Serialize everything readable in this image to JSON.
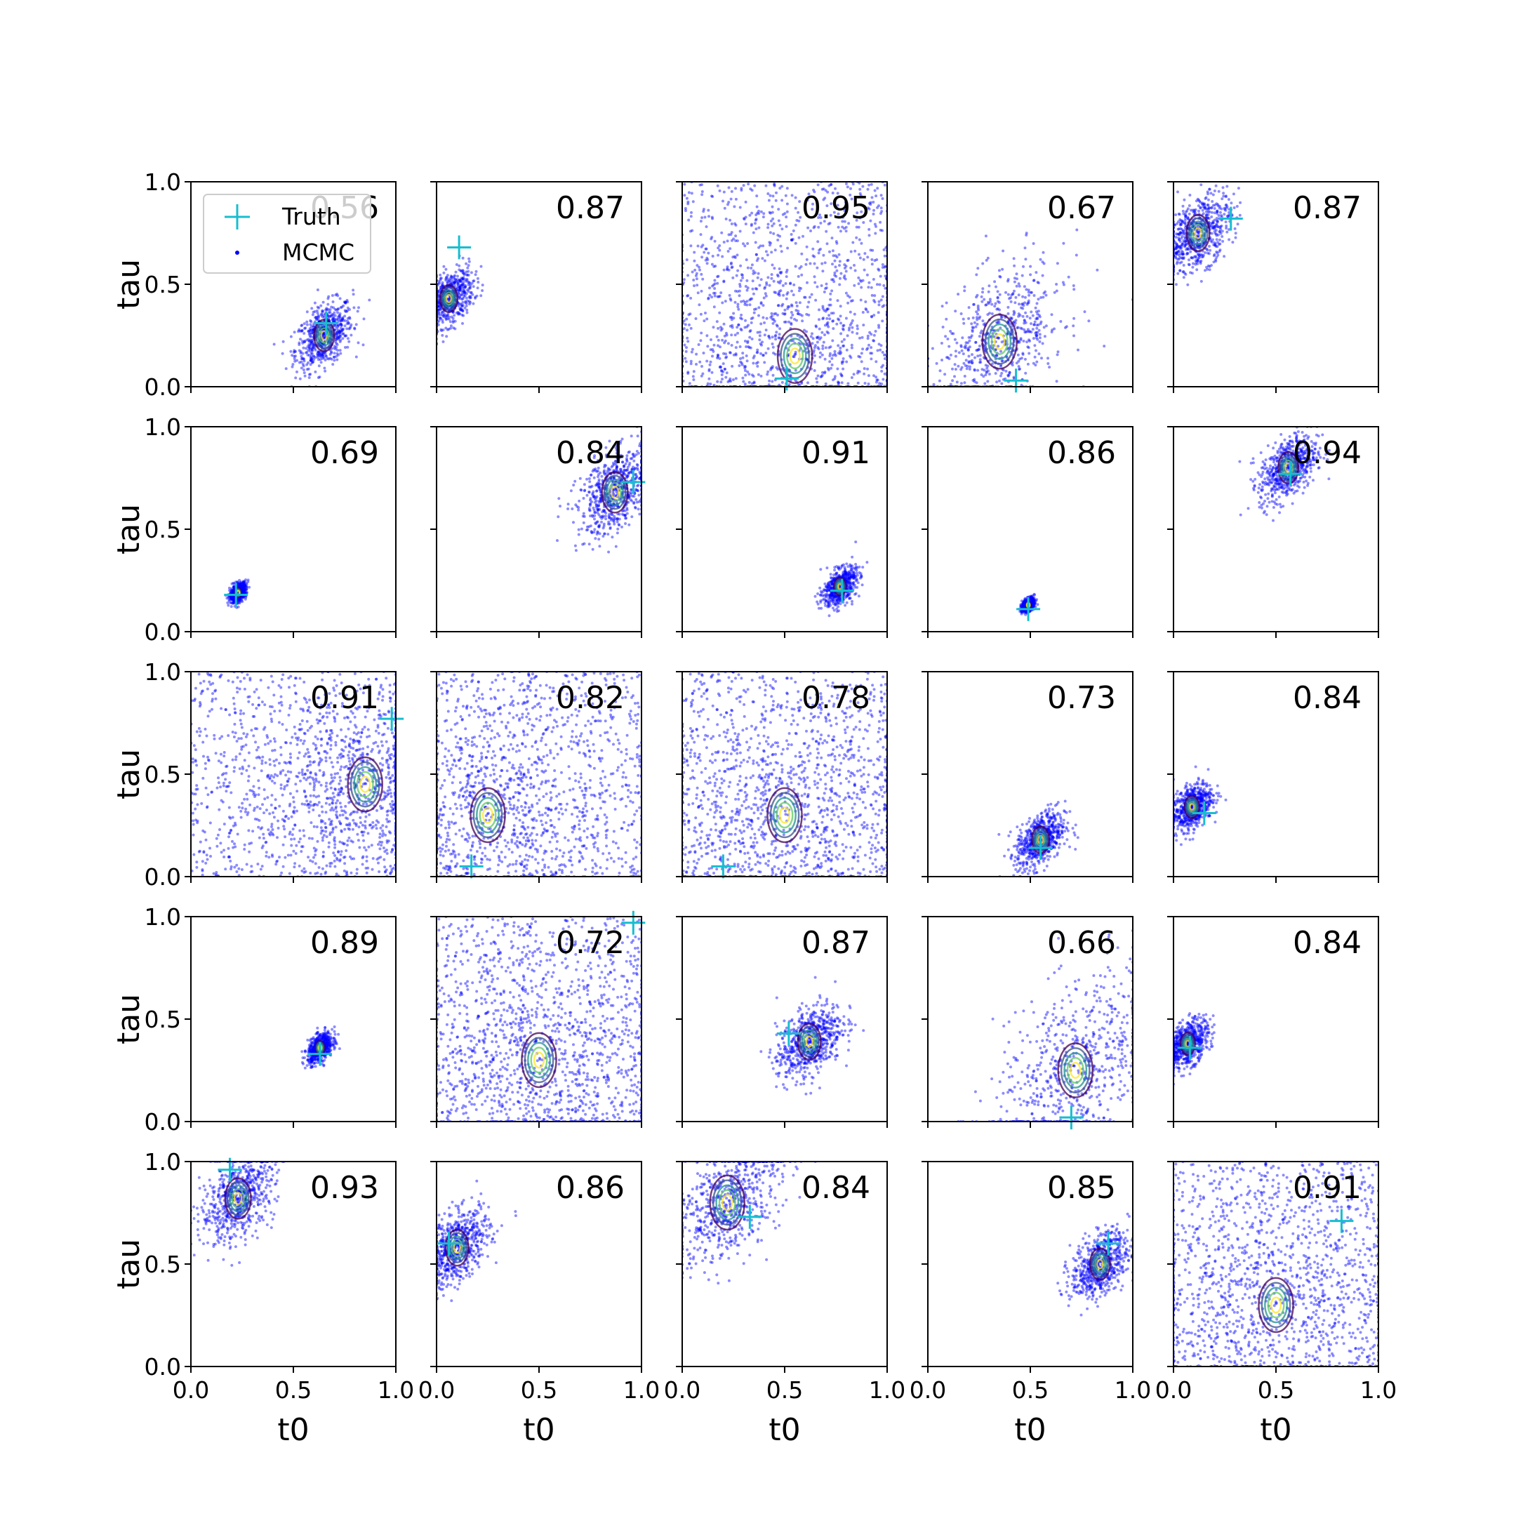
{
  "chart_data": {
    "type": "scatter",
    "layout": "5x5 grid",
    "xlabel": "t0",
    "ylabel": "tau",
    "xlim": [
      0,
      1
    ],
    "ylim": [
      0,
      1
    ],
    "xticks": [
      "0.0",
      "0.5",
      "1.0"
    ],
    "yticks": [
      "0.0",
      "0.5",
      "1.0"
    ],
    "legend": {
      "location": "upper-left of first panel",
      "entries": [
        {
          "label": "Truth",
          "marker": "plus",
          "color": "#17becf"
        },
        {
          "label": "MCMC",
          "marker": "dot",
          "color": "#0000ff"
        }
      ]
    },
    "colors": {
      "mcmc": "#0000ff",
      "truth": "#17becf",
      "contour": [
        "#440154",
        "#3b528b",
        "#21918c",
        "#5ec962",
        "#fde725"
      ]
    },
    "panels": [
      {
        "value": "0.56",
        "truth": [
          0.66,
          0.31
        ],
        "mean": [
          0.65,
          0.25
        ],
        "spread": 0.07
      },
      {
        "value": "0.87",
        "truth": [
          0.11,
          0.68
        ],
        "mean": [
          0.06,
          0.43
        ],
        "spread": 0.06
      },
      {
        "value": "0.95",
        "truth": [
          0.51,
          0.04
        ],
        "mean": [
          0.55,
          0.15
        ],
        "spread": 0.35
      },
      {
        "value": "0.67",
        "truth": [
          0.43,
          0.03
        ],
        "mean": [
          0.35,
          0.22
        ],
        "spread": 0.16
      },
      {
        "value": "0.87",
        "truth": [
          0.28,
          0.82
        ],
        "mean": [
          0.12,
          0.75
        ],
        "spread": 0.08
      },
      {
        "value": "0.69",
        "truth": [
          0.22,
          0.18
        ],
        "mean": [
          0.23,
          0.19
        ],
        "spread": 0.02
      },
      {
        "value": "0.84",
        "truth": [
          0.96,
          0.73
        ],
        "mean": [
          0.87,
          0.68
        ],
        "spread": 0.09
      },
      {
        "value": "0.91",
        "truth": [
          0.78,
          0.2
        ],
        "mean": [
          0.77,
          0.22
        ],
        "spread": 0.04
      },
      {
        "value": "0.86",
        "truth": [
          0.49,
          0.11
        ],
        "mean": [
          0.49,
          0.13
        ],
        "spread": 0.015
      },
      {
        "value": "0.94",
        "truth": [
          0.57,
          0.77
        ],
        "mean": [
          0.56,
          0.8
        ],
        "spread": 0.07
      },
      {
        "value": "0.91",
        "truth": [
          0.98,
          0.77
        ],
        "mean": [
          0.85,
          0.45
        ],
        "spread": 0.25
      },
      {
        "value": "0.82",
        "truth": [
          0.17,
          0.05
        ],
        "mean": [
          0.25,
          0.3
        ],
        "spread": 0.33
      },
      {
        "value": "0.78",
        "truth": [
          0.2,
          0.05
        ],
        "mean": [
          0.5,
          0.3
        ],
        "spread": 0.35
      },
      {
        "value": "0.73",
        "truth": [
          0.55,
          0.14
        ],
        "mean": [
          0.55,
          0.18
        ],
        "spread": 0.06
      },
      {
        "value": "0.84",
        "truth": [
          0.15,
          0.31
        ],
        "mean": [
          0.09,
          0.34
        ],
        "spread": 0.05
      },
      {
        "value": "0.89",
        "truth": [
          0.63,
          0.33
        ],
        "mean": [
          0.63,
          0.36
        ],
        "spread": 0.03
      },
      {
        "value": "0.72",
        "truth": [
          0.96,
          0.97
        ],
        "mean": [
          0.5,
          0.3
        ],
        "spread": 0.33
      },
      {
        "value": "0.87",
        "truth": [
          0.52,
          0.43
        ],
        "mean": [
          0.62,
          0.39
        ],
        "spread": 0.08
      },
      {
        "value": "0.66",
        "truth": [
          0.7,
          0.02
        ],
        "mean": [
          0.72,
          0.25
        ],
        "spread": 0.2
      },
      {
        "value": "0.84",
        "truth": [
          0.08,
          0.36
        ],
        "mean": [
          0.07,
          0.38
        ],
        "spread": 0.05
      },
      {
        "value": "0.93",
        "truth": [
          0.19,
          0.96
        ],
        "mean": [
          0.23,
          0.82
        ],
        "spread": 0.09
      },
      {
        "value": "0.86",
        "truth": [
          0.06,
          0.6
        ],
        "mean": [
          0.1,
          0.58
        ],
        "spread": 0.08
      },
      {
        "value": "0.84",
        "truth": [
          0.33,
          0.73
        ],
        "mean": [
          0.22,
          0.8
        ],
        "spread": 0.13
      },
      {
        "value": "0.85",
        "truth": [
          0.88,
          0.6
        ],
        "mean": [
          0.84,
          0.5
        ],
        "spread": 0.07
      },
      {
        "value": "0.91",
        "truth": [
          0.82,
          0.71
        ],
        "mean": [
          0.5,
          0.3
        ],
        "spread": 0.35
      }
    ]
  }
}
